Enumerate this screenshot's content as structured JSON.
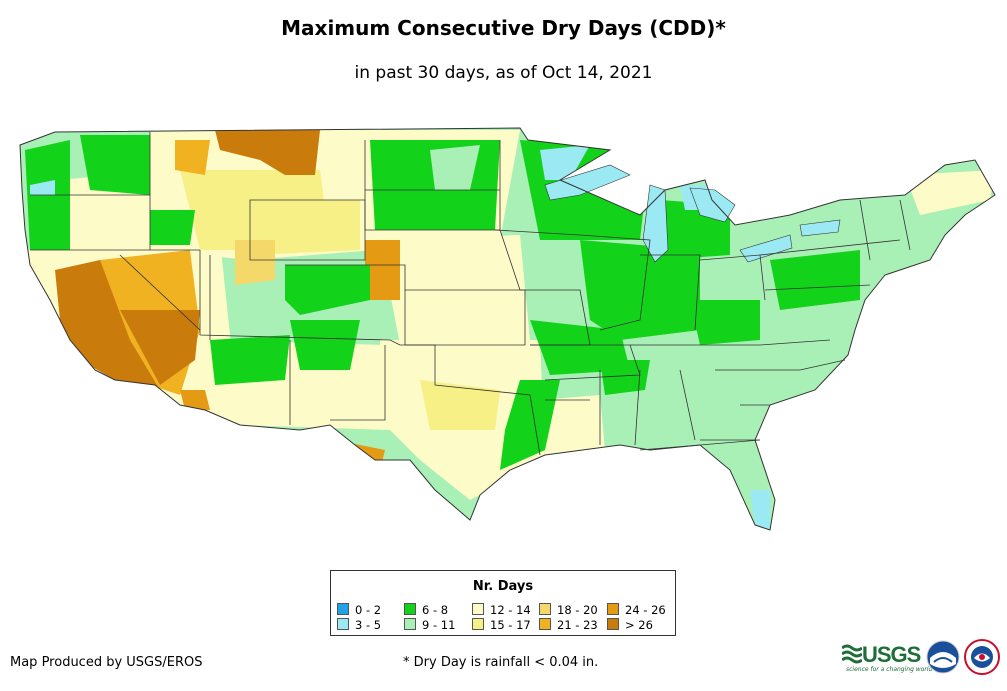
{
  "header": {
    "title": "Maximum Consecutive Dry Days (CDD)*",
    "subtitle": "in past 30 days, as of Oct 14, 2021"
  },
  "legend": {
    "title": "Nr. Days",
    "items": [
      {
        "label": "0 - 2",
        "color": "#1fa3e6"
      },
      {
        "label": "3 - 5",
        "color": "#9be9f2"
      },
      {
        "label": "6 - 8",
        "color": "#12d21a"
      },
      {
        "label": "9 - 11",
        "color": "#a9f0b6"
      },
      {
        "label": "12 - 14",
        "color": "#fdfbc8"
      },
      {
        "label": "15 - 17",
        "color": "#f6f086"
      },
      {
        "label": "18 - 20",
        "color": "#f5d86a"
      },
      {
        "label": "21 - 23",
        "color": "#f1b221"
      },
      {
        "label": "24 - 26",
        "color": "#e49a12"
      },
      {
        "label": "> 26",
        "color": "#c97b0b"
      }
    ]
  },
  "footer": {
    "credit": "Map Produced by USGS/EROS",
    "footnote": "* Dry Day is rainfall < 0.04 in.",
    "usgs_logo_text": "USGS",
    "usgs_tagline": "science for a changing world"
  },
  "map": {
    "land_color": "#a9f0b6",
    "border_color": "#333333",
    "water_color": "#9be9f2"
  }
}
